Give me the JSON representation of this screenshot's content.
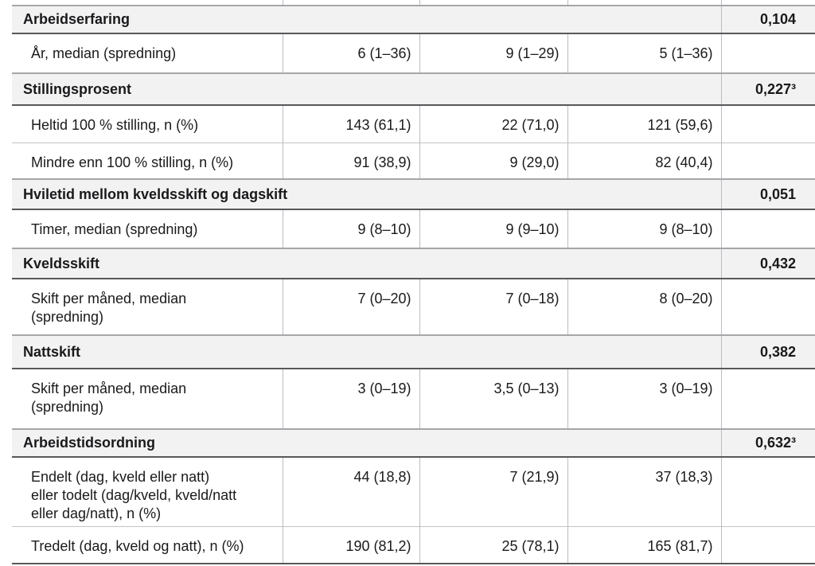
{
  "colors": {
    "section_row_bg": "#f2f2f3",
    "border_light": "#bcbcc0",
    "border_medium": "#a6a6aa",
    "border_dark": "#58585c",
    "text": "#1a1a1c"
  },
  "sections": [
    {
      "title": "Arbeidserfaring",
      "p": "0,104",
      "rows": [
        {
          "label": "År, median (spredning)",
          "values": [
            "6 (1–36)",
            "9 (1–29)",
            "5 (1–36)"
          ]
        }
      ]
    },
    {
      "title": "Stillingsprosent",
      "p": "0,227³",
      "rows": [
        {
          "label": "Heltid 100 % stilling, n (%)",
          "values": [
            "143 (61,1)",
            "22 (71,0)",
            "121 (59,6)"
          ]
        },
        {
          "label": "Mindre enn 100 % stilling, n (%)",
          "values": [
            "91 (38,9)",
            "9 (29,0)",
            "82 (40,4)"
          ]
        }
      ]
    },
    {
      "title": "Hviletid mellom kveldsskift og dagskift",
      "p": "0,051",
      "rows": [
        {
          "label": "Timer, median (spredning)",
          "values": [
            "9 (8–10)",
            "9 (9–10)",
            "9 (8–10)"
          ]
        }
      ]
    },
    {
      "title": "Kveldsskift",
      "p": "0,432",
      "rows": [
        {
          "label": "Skift per måned, median\n(spredning)",
          "values": [
            "7 (0–20)",
            "7 (0–18)",
            "8 (0–20)"
          ]
        }
      ]
    },
    {
      "title": "Nattskift",
      "p": "0,382",
      "rows": [
        {
          "label": "Skift per måned, median\n(spredning)",
          "values": [
            "3 (0–19)",
            "3,5 (0–13)",
            "3 (0–19)"
          ]
        }
      ]
    },
    {
      "title": "Arbeidstidsordning",
      "p": "0,632³",
      "rows": [
        {
          "label": "Endelt (dag, kveld eller natt)\neller todelt (dag/kveld, kveld/natt\neller dag/natt), n (%)",
          "values": [
            "44 (18,8)",
            "7 (21,9)",
            "37 (18,3)"
          ]
        },
        {
          "label": "Tredelt (dag, kveld og natt), n (%)",
          "values": [
            "190 (81,2)",
            "25 (78,1)",
            "165 (81,7)"
          ]
        }
      ]
    }
  ]
}
